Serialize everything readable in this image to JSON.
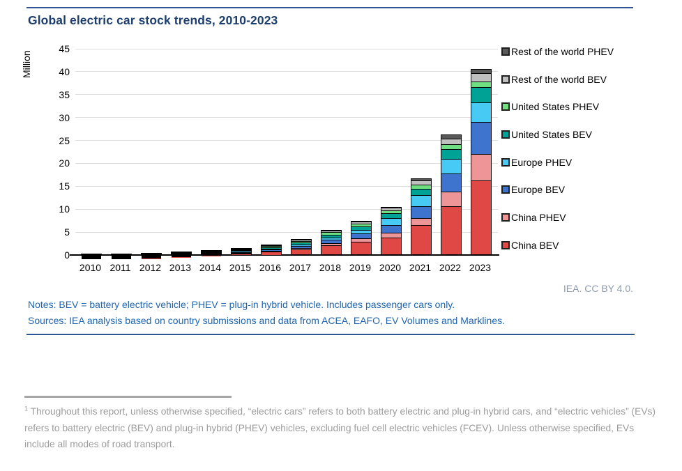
{
  "figure": {
    "title": "Global electric car stock trends, 2010-2023",
    "attribution": "IEA. CC BY 4.0.",
    "notes": "Notes: BEV = battery electric vehicle; PHEV = plug-in hybrid vehicle. Includes passenger cars only.",
    "sources": "Sources: IEA analysis based on country submissions and data from ACEA, EAFO, EV Volumes and Marklines.",
    "accent_rule_color": "#2E5395",
    "title_color": "#1C3E6E",
    "notes_color": "#2065AF"
  },
  "footnote": {
    "marker": "1",
    "text": " Throughout this report, unless otherwise specified, “electric cars” refers to both battery electric and plug-in hybrid cars, and “electric vehicles” (EVs) refers to battery electric (BEV) and plug-in hybrid (PHEV) vehicles, excluding fuel cell electric vehicles (FCEV). Unless otherwise specified, EVs include all modes of road transport."
  },
  "chart_data": {
    "type": "bar",
    "stacked": true,
    "title": "Global electric car stock trends, 2010-2023",
    "xlabel": "",
    "ylabel": "Million",
    "ylim": [
      0,
      45
    ],
    "yticks": [
      0,
      5,
      10,
      15,
      20,
      25,
      30,
      35,
      40,
      45
    ],
    "grid": "horizontal",
    "legend_position": "right",
    "bar_border_color": "#000000",
    "gridline_color": "#DCDCDC",
    "categories": [
      "2010",
      "2011",
      "2012",
      "2013",
      "2014",
      "2015",
      "2016",
      "2017",
      "2018",
      "2019",
      "2020",
      "2021",
      "2022",
      "2023"
    ],
    "units": "million vehicles",
    "series": [
      {
        "name": "China BEV",
        "color": "#E04845",
        "values": [
          0.005,
          0.01,
          0.02,
          0.05,
          0.1,
          0.23,
          0.49,
          0.95,
          1.79,
          2.58,
          3.5,
          6.2,
          10.4,
          16.0
        ]
      },
      {
        "name": "China PHEV",
        "color": "#EE9697",
        "values": [
          0.002,
          0.003,
          0.007,
          0.015,
          0.03,
          0.09,
          0.16,
          0.28,
          0.47,
          0.77,
          1.0,
          1.6,
          3.1,
          5.8
        ]
      },
      {
        "name": "Europe BEV",
        "color": "#3E74CE",
        "values": [
          0.004,
          0.012,
          0.035,
          0.08,
          0.14,
          0.22,
          0.32,
          0.46,
          0.73,
          1.02,
          1.75,
          2.6,
          4.0,
          6.9
        ]
      },
      {
        "name": "Europe PHEV",
        "color": "#47CBF5",
        "values": [
          0.001,
          0.003,
          0.01,
          0.03,
          0.08,
          0.16,
          0.26,
          0.4,
          0.55,
          0.75,
          1.45,
          2.35,
          3.2,
          4.3
        ]
      },
      {
        "name": "United States BEV",
        "color": "#00A296",
        "values": [
          0.003,
          0.013,
          0.04,
          0.08,
          0.14,
          0.21,
          0.3,
          0.4,
          0.64,
          0.88,
          1.1,
          1.45,
          2.1,
          3.3
        ]
      },
      {
        "name": "United States PHEV",
        "color": "#6FDF82",
        "values": [
          0.001,
          0.008,
          0.04,
          0.09,
          0.15,
          0.2,
          0.26,
          0.36,
          0.47,
          0.57,
          0.65,
          0.9,
          1.0,
          1.25
        ]
      },
      {
        "name": "Rest of the world BEV",
        "color": "#BFBFBF",
        "values": [
          0.003,
          0.008,
          0.02,
          0.03,
          0.05,
          0.1,
          0.15,
          0.2,
          0.33,
          0.45,
          0.55,
          0.85,
          1.35,
          1.9
        ]
      },
      {
        "name": "Rest of the world PHEV",
        "color": "#595959",
        "values": [
          0.001,
          0.003,
          0.008,
          0.01,
          0.02,
          0.04,
          0.06,
          0.09,
          0.14,
          0.18,
          0.25,
          0.5,
          0.85,
          0.9
        ]
      }
    ],
    "legend_order_top_to_bottom": [
      "Rest of the world PHEV",
      "Rest of the world BEV",
      "United States PHEV",
      "United States BEV",
      "Europe PHEV",
      "Europe BEV",
      "China PHEV",
      "China BEV"
    ]
  }
}
